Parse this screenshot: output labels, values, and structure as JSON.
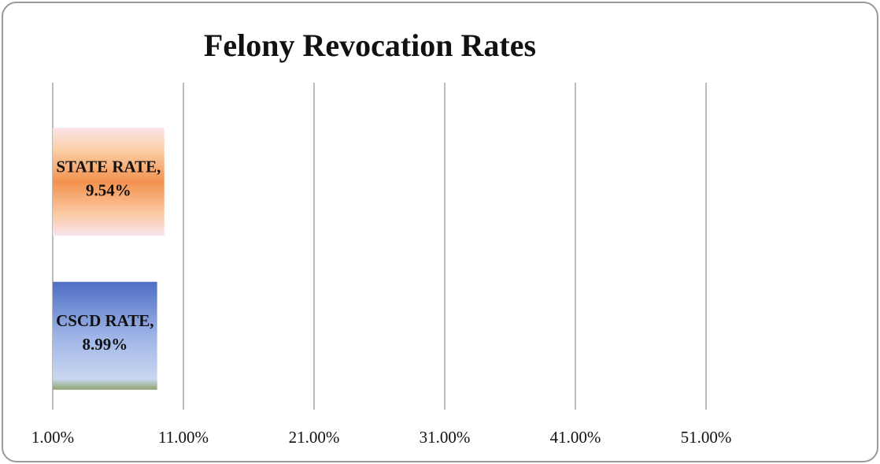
{
  "chart_data": {
    "type": "barh",
    "title": "Felony Revocation Rates",
    "categories": [
      "STATE RATE,",
      "CSCD RATE,"
    ],
    "values": [
      9.54,
      8.99
    ],
    "value_labels": [
      "9.54%",
      "8.99%"
    ],
    "colors": [
      "#f39a5a",
      "#6f8fd6"
    ],
    "xlim": [
      1,
      61
    ],
    "xticks": [
      {
        "value": 1,
        "label": "1.00%"
      },
      {
        "value": 11,
        "label": "11.00%"
      },
      {
        "value": 21,
        "label": "21.00%"
      },
      {
        "value": 31,
        "label": "31.00%"
      },
      {
        "value": 41,
        "label": "41.00%"
      },
      {
        "value": 51,
        "label": "51.00%"
      }
    ],
    "grid": true
  }
}
